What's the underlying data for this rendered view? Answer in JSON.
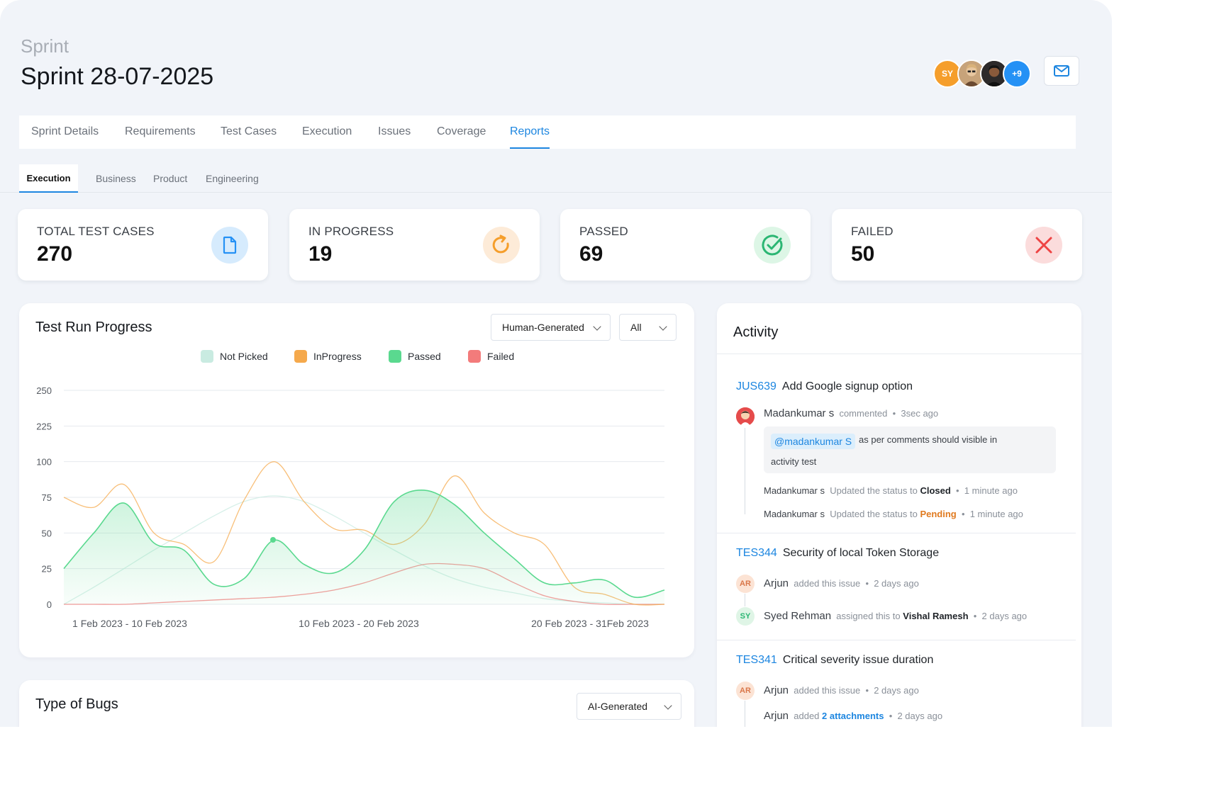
{
  "header": {
    "crumb": "Sprint",
    "title": "Sprint 28-07-2025",
    "avatars": [
      {
        "initials": "SY",
        "color": "#f59e2b"
      },
      {
        "initials": "",
        "color": "#b4895d"
      },
      {
        "initials": "",
        "color": "#2d2a2a"
      },
      {
        "initials": "+9",
        "color": "#2591f5"
      }
    ],
    "mail_icon": "mail-icon"
  },
  "tabs": [
    {
      "label": "Sprint Details"
    },
    {
      "label": "Requirements"
    },
    {
      "label": "Test Cases"
    },
    {
      "label": "Execution"
    },
    {
      "label": "Issues"
    },
    {
      "label": "Coverage"
    },
    {
      "label": "Reports",
      "active": true
    }
  ],
  "subtabs": [
    {
      "label": "Execution",
      "active": true
    },
    {
      "label": "Business"
    },
    {
      "label": "Product"
    },
    {
      "label": "Engineering"
    }
  ],
  "stats": [
    {
      "label": "TOTAL TEST CASES",
      "value": "270",
      "icon": "document-icon",
      "color": "#2591f5",
      "bg": "#d6ebfd"
    },
    {
      "label": "IN PROGRESS",
      "value": "19",
      "icon": "refresh-icon",
      "color": "#f59e2b",
      "bg": "#fdebd8"
    },
    {
      "label": "PASSED",
      "value": "69",
      "icon": "check-circle-icon",
      "color": "#2bb673",
      "bg": "#ddf6e6"
    },
    {
      "label": "FAILED",
      "value": "50",
      "icon": "close-icon",
      "color": "#ee4444",
      "bg": "#fbdcdc"
    }
  ],
  "progress_card": {
    "title": "Test Run Progress",
    "filter1": "Human-Generated",
    "filter2": "All"
  },
  "bugs_card": {
    "title": "Type of Bugs",
    "filter": "AI-Generated"
  },
  "chart_data": {
    "type": "area",
    "title": "Test Run Progress",
    "y_ticks": [
      "0",
      "25",
      "50",
      "75",
      "100",
      "225",
      "250"
    ],
    "x_ticks": [
      "1 Feb 2023 - 10 Feb 2023",
      "10 Feb 2023 - 20 Feb 2023",
      "20 Feb 2023 - 31Feb 2023"
    ],
    "grid": true,
    "legend_position": "top",
    "x": [
      0,
      1,
      2,
      3,
      4,
      5,
      6,
      7,
      8,
      9,
      10,
      11,
      12,
      13,
      14,
      15,
      16,
      17,
      18,
      19,
      20
    ],
    "series": [
      {
        "name": "Not Picked",
        "color": "#c9ebe1",
        "values": [
          0,
          12,
          25,
          38,
          50,
          62,
          72,
          76,
          72,
          62,
          50,
          38,
          27,
          18,
          12,
          8,
          4,
          2,
          1,
          0,
          0
        ]
      },
      {
        "name": "InProgress",
        "color": "#f5a94c",
        "values": [
          75,
          68,
          84,
          50,
          42,
          30,
          73,
          100,
          72,
          53,
          52,
          42,
          56,
          90,
          64,
          50,
          42,
          12,
          7,
          0,
          0
        ]
      },
      {
        "name": "Passed",
        "color": "#5ad98f",
        "values": [
          25,
          50,
          71,
          43,
          38,
          14,
          18,
          45,
          28,
          22,
          38,
          72,
          80,
          70,
          50,
          32,
          15,
          15,
          17,
          5,
          10
        ]
      },
      {
        "name": "Failed",
        "color": "#f37b7b",
        "values": [
          0,
          0,
          0,
          1,
          2,
          3,
          4,
          5,
          7,
          10,
          15,
          22,
          28,
          28,
          25,
          15,
          6,
          2,
          0,
          0,
          0
        ]
      }
    ]
  },
  "activity": {
    "title": "Activity",
    "items": [
      {
        "key": "JUS639",
        "title": "Add Google signup option",
        "commenter": "Madankumar s",
        "comment_verb": "commented",
        "comment_time": "3sec ago",
        "mention": "@madankumar S",
        "comment_text": "as per comments should visible in",
        "comment_text2": "activity test",
        "updates": [
          {
            "who": "Madankumar s",
            "text": "Updated the status to",
            "status": "Closed",
            "time": "1 minute ago"
          },
          {
            "who": "Madankumar s",
            "text": "Updated the status to",
            "status": "Pending",
            "time": "1 minute ago"
          }
        ]
      },
      {
        "key": "TES344",
        "title": "Security of local Token Storage",
        "lines": [
          {
            "initials": "AR",
            "who": "Arjun",
            "text": "added this issue",
            "time": "2 days ago"
          },
          {
            "initials": "SY",
            "who": "Syed Rehman",
            "text": "assigned this to",
            "target": "Vishal Ramesh",
            "time": "2 days ago"
          }
        ]
      },
      {
        "key": "TES341",
        "title": "Critical severity issue duration",
        "lines": [
          {
            "initials": "AR",
            "who": "Arjun",
            "text": "added this issue",
            "time": "2 days ago"
          },
          {
            "who": "Arjun",
            "text": "added",
            "link": "2 attachments",
            "time": "2 days ago"
          }
        ]
      }
    ]
  }
}
